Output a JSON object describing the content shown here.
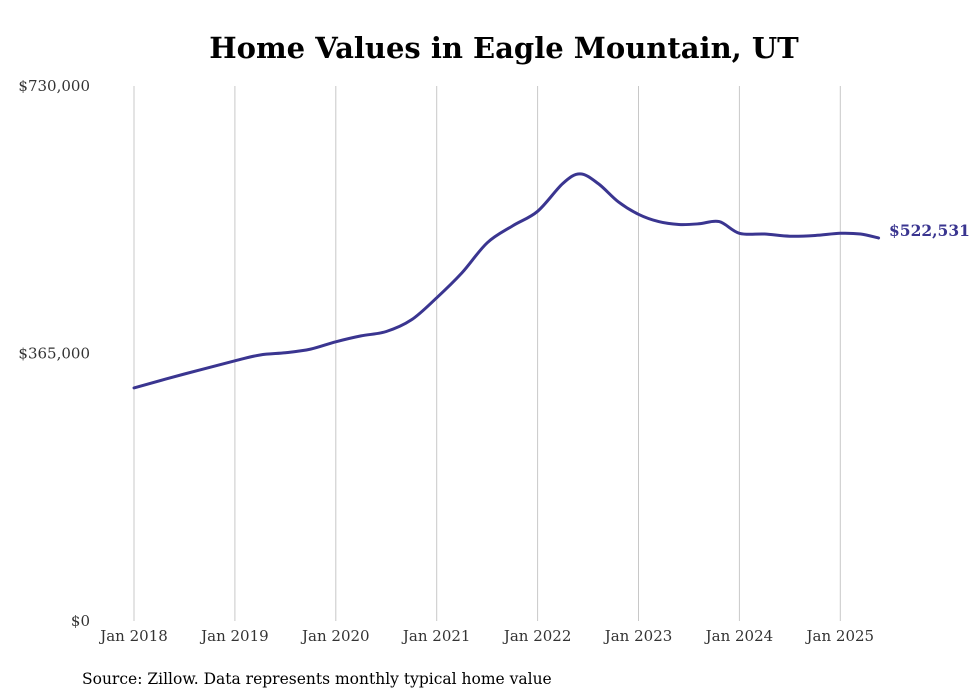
{
  "chart_data": {
    "type": "line",
    "title": "Home Values in Eagle Mountain, UT",
    "source": "Source: Zillow. Data represents monthly typical home value",
    "xlabel": "",
    "ylabel": "",
    "ylim": [
      0,
      730000
    ],
    "y_ticks": [
      {
        "value": 0,
        "label": "$0"
      },
      {
        "value": 365000,
        "label": "$365,000"
      },
      {
        "value": 730000,
        "label": "$730,000"
      }
    ],
    "x_ticks": [
      {
        "value": 2018.0,
        "label": "Jan 2018"
      },
      {
        "value": 2019.0,
        "label": "Jan 2019"
      },
      {
        "value": 2020.0,
        "label": "Jan 2020"
      },
      {
        "value": 2021.0,
        "label": "Jan 2021"
      },
      {
        "value": 2022.0,
        "label": "Jan 2022"
      },
      {
        "value": 2023.0,
        "label": "Jan 2023"
      },
      {
        "value": 2024.0,
        "label": "Jan 2024"
      },
      {
        "value": 2025.0,
        "label": "Jan 2025"
      }
    ],
    "xlim": [
      2018.0,
      2025.5
    ],
    "grid": "vertical",
    "line_color": "#3a3590",
    "end_label": "$522,531",
    "series": [
      {
        "x": [
          2018.0,
          2018.5,
          2019.0,
          2019.25,
          2019.5,
          2019.75,
          2020.0,
          2020.25,
          2020.5,
          2020.75,
          2021.0,
          2021.25,
          2021.5,
          2021.75,
          2022.0,
          2022.25,
          2022.42,
          2022.6,
          2022.8,
          2023.0,
          2023.2,
          2023.4,
          2023.6,
          2023.8,
          2024.0,
          2024.25,
          2024.5,
          2024.75,
          2025.0,
          2025.2,
          2025.38
        ],
        "values": [
          318000,
          337000,
          355000,
          363000,
          366000,
          371000,
          381000,
          389000,
          395000,
          411000,
          441000,
          475000,
          516000,
          539000,
          559000,
          597000,
          610000,
          597000,
          572000,
          555000,
          545000,
          541000,
          542000,
          545000,
          529000,
          528000,
          525000,
          526000,
          529000,
          528000,
          522531
        ]
      }
    ]
  }
}
